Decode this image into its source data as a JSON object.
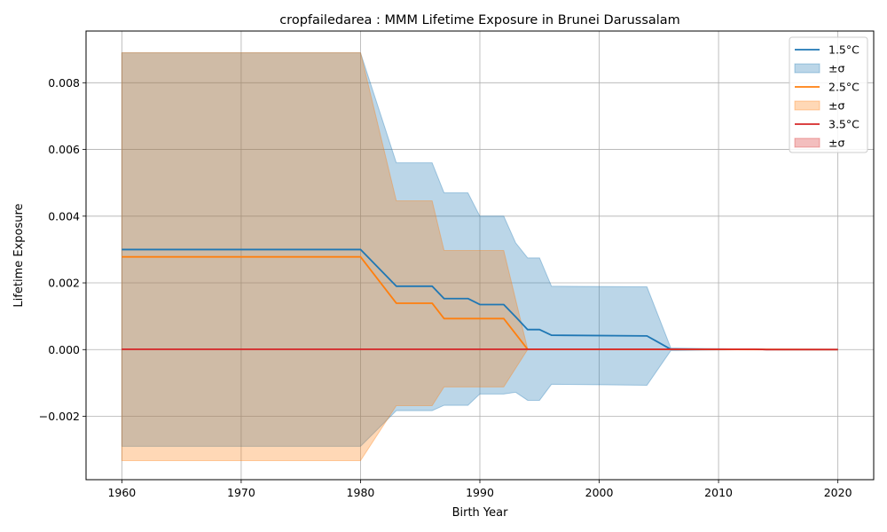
{
  "chart_data": {
    "type": "line",
    "title": "cropfailedarea : MMM Lifetime Exposure in Brunei Darussalam",
    "xlabel": "Birth Year",
    "ylabel": "Lifetime Exposure",
    "xlim": [
      1957,
      2023
    ],
    "ylim": [
      -0.0039,
      0.00955
    ],
    "xticks": [
      1960,
      1970,
      1980,
      1990,
      2000,
      2010,
      2020
    ],
    "xtick_labels": [
      "1960",
      "1970",
      "1980",
      "1990",
      "2000",
      "2010",
      "2020"
    ],
    "yticks": [
      -0.002,
      0.0,
      0.002,
      0.004,
      0.006,
      0.008
    ],
    "ytick_labels": [
      "−0.002",
      "0.000",
      "0.002",
      "0.004",
      "0.006",
      "0.008"
    ],
    "grid": true,
    "legend_position": "top-right",
    "legend": [
      "1.5°C",
      "±σ",
      "2.5°C",
      "±σ",
      "3.5°C",
      "±σ"
    ],
    "series": [
      {
        "name": "1.5°C",
        "band_label": "±σ",
        "color": "#1f77b4",
        "band_color": "#1f77b4",
        "x": [
          1960,
          1980,
          1983,
          1986,
          1987,
          1989,
          1990,
          1992,
          1993,
          1994,
          1995,
          1996,
          2004,
          2006,
          2013,
          2014,
          2020
        ],
        "y": [
          0.003,
          0.003,
          0.0019,
          0.0019,
          0.00153,
          0.00153,
          0.00135,
          0.00135,
          0.00098,
          0.0006,
          0.0006,
          0.00043,
          0.00041,
          1e-05,
          1e-05,
          0.0,
          0.0
        ],
        "upper": [
          0.0089,
          0.0089,
          0.0056,
          0.0056,
          0.0047,
          0.0047,
          0.004,
          0.004,
          0.0032,
          0.00275,
          0.00275,
          0.0019,
          0.00188,
          5e-05,
          1e-05,
          0.0,
          0.0
        ],
        "lower": [
          -0.0029,
          -0.0029,
          -0.00183,
          -0.00183,
          -0.00167,
          -0.00167,
          -0.00133,
          -0.00133,
          -0.00128,
          -0.00152,
          -0.00152,
          -0.00104,
          -0.00107,
          -3e-05,
          0.0,
          0.0,
          0.0
        ]
      },
      {
        "name": "2.5°C",
        "band_label": "±σ",
        "color": "#ff7f0e",
        "band_color": "#ff7f0e",
        "x": [
          1960,
          1980,
          1983,
          1986,
          1987,
          1992,
          1994,
          2006,
          2020
        ],
        "y": [
          0.00278,
          0.00278,
          0.00139,
          0.00139,
          0.00093,
          0.00093,
          1e-05,
          1e-05,
          0.0
        ],
        "upper": [
          0.0089,
          0.0089,
          0.00446,
          0.00446,
          0.00297,
          0.00297,
          2e-05,
          2e-05,
          0.0
        ],
        "lower": [
          -0.00333,
          -0.00333,
          -0.00168,
          -0.00168,
          -0.00112,
          -0.00112,
          0.0,
          0.0,
          0.0
        ]
      },
      {
        "name": "3.5°C",
        "band_label": "±σ",
        "color": "#d62728",
        "band_color": "#d62728",
        "x": [
          1960,
          2013,
          2014,
          2020
        ],
        "y": [
          1e-05,
          1e-05,
          0.0,
          0.0
        ],
        "upper": [
          2e-05,
          2e-05,
          1e-05,
          0.0
        ],
        "lower": [
          0.0,
          0.0,
          -1e-05,
          0.0
        ]
      }
    ]
  }
}
